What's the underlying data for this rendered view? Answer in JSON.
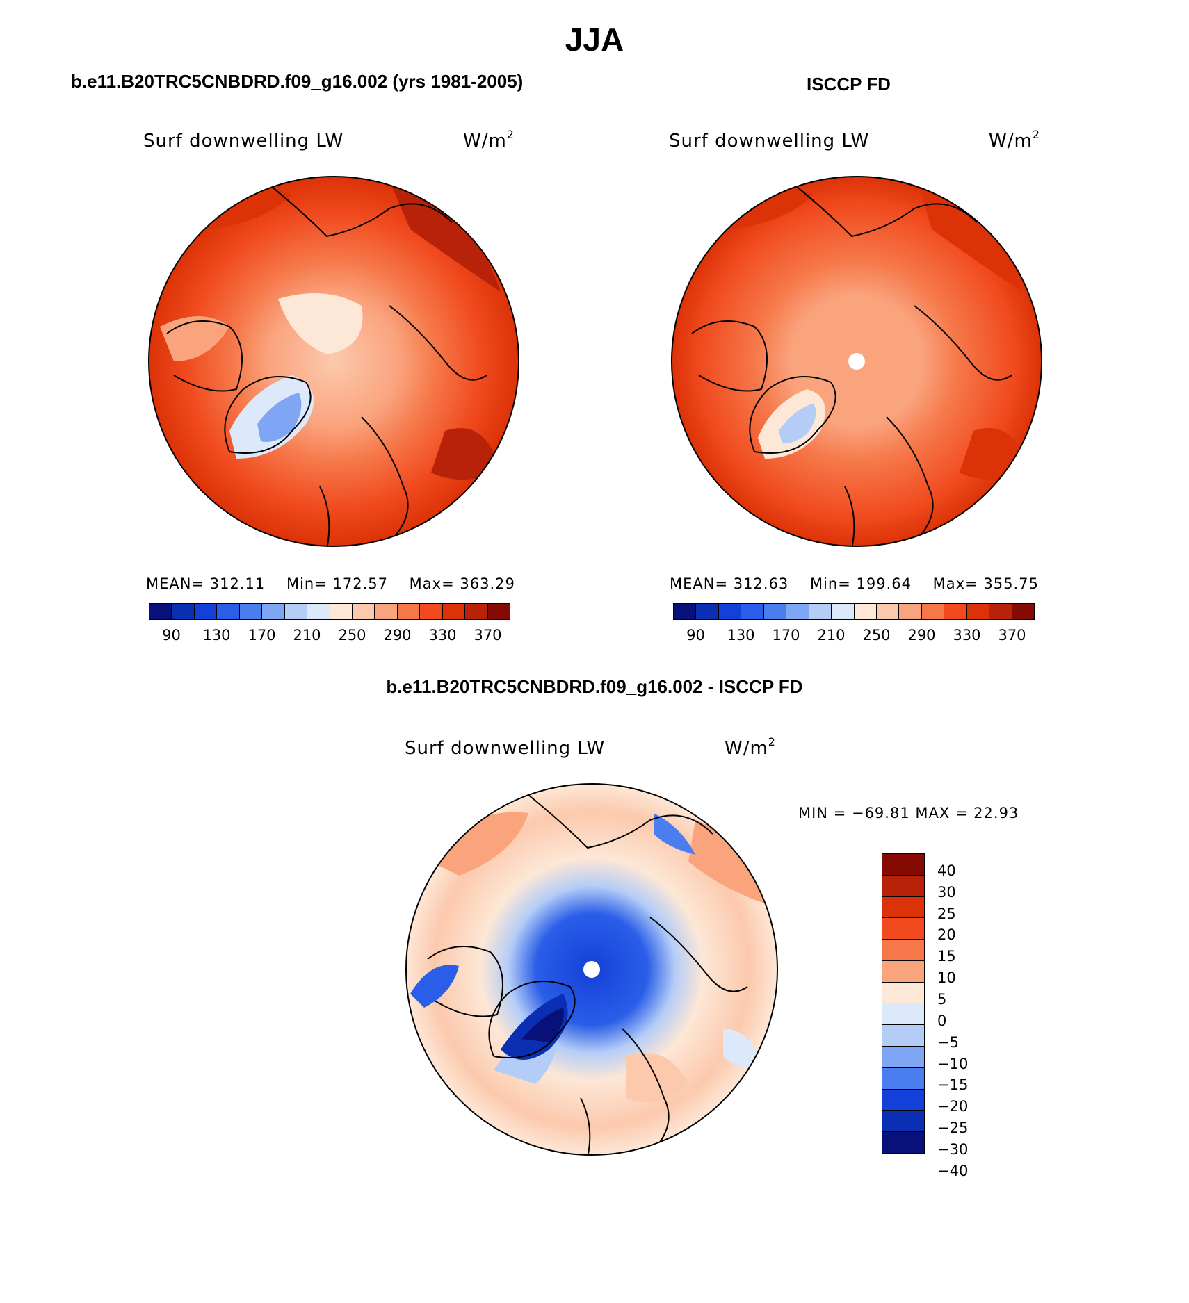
{
  "title": "JJA",
  "panels": {
    "left": {
      "header": "b.e11.B20TRC5CNBDRD.f09_g16.002 (yrs 1981-2005)",
      "variable": "Surf downwelling LW",
      "units": "W/m",
      "units_sup": "2",
      "mean_label": "MEAN=",
      "mean": "312.11",
      "min_label": "Min=",
      "min": "172.57",
      "max_label": "Max=",
      "max": "363.29"
    },
    "right": {
      "header": "ISCCP FD",
      "variable": "Surf downwelling LW",
      "units": "W/m",
      "units_sup": "2",
      "mean_label": "MEAN=",
      "mean": "312.63",
      "min_label": "Min=",
      "min": "199.64",
      "max_label": "Max=",
      "max": "355.75"
    },
    "bottom": {
      "header": "b.e11.B20TRC5CNBDRD.f09_g16.002 - ISCCP FD",
      "variable": "Surf downwelling LW",
      "units": "W/m",
      "units_sup": "2",
      "minmax_text": "MIN = −69.81 MAX =  22.93"
    }
  },
  "colorbar_abs": {
    "colors": [
      "#08107a",
      "#0b2fb3",
      "#1340d8",
      "#2a5ee8",
      "#4a7ef0",
      "#7fa6f5",
      "#b4cdf7",
      "#dce9fb",
      "#fde7d6",
      "#fcc9ad",
      "#faa47e",
      "#f6784a",
      "#f04a1e",
      "#dc3208",
      "#b82208",
      "#860a04"
    ],
    "labels": [
      "90",
      "130",
      "170",
      "210",
      "250",
      "290",
      "330",
      "370"
    ]
  },
  "colorbar_diff": {
    "colors": [
      "#860a04",
      "#b82208",
      "#dc3208",
      "#f04a1e",
      "#f6784a",
      "#faa47e",
      "#fde7d6",
      "#dce9fb",
      "#b4cdf7",
      "#7fa6f5",
      "#4a7ef0",
      "#1340d8",
      "#0b2fb3",
      "#08107a"
    ],
    "labels": [
      "40",
      "30",
      "25",
      "20",
      "15",
      "10",
      "5",
      "0",
      "−5",
      "−10",
      "−15",
      "−20",
      "−25",
      "−30",
      "−40"
    ]
  }
}
